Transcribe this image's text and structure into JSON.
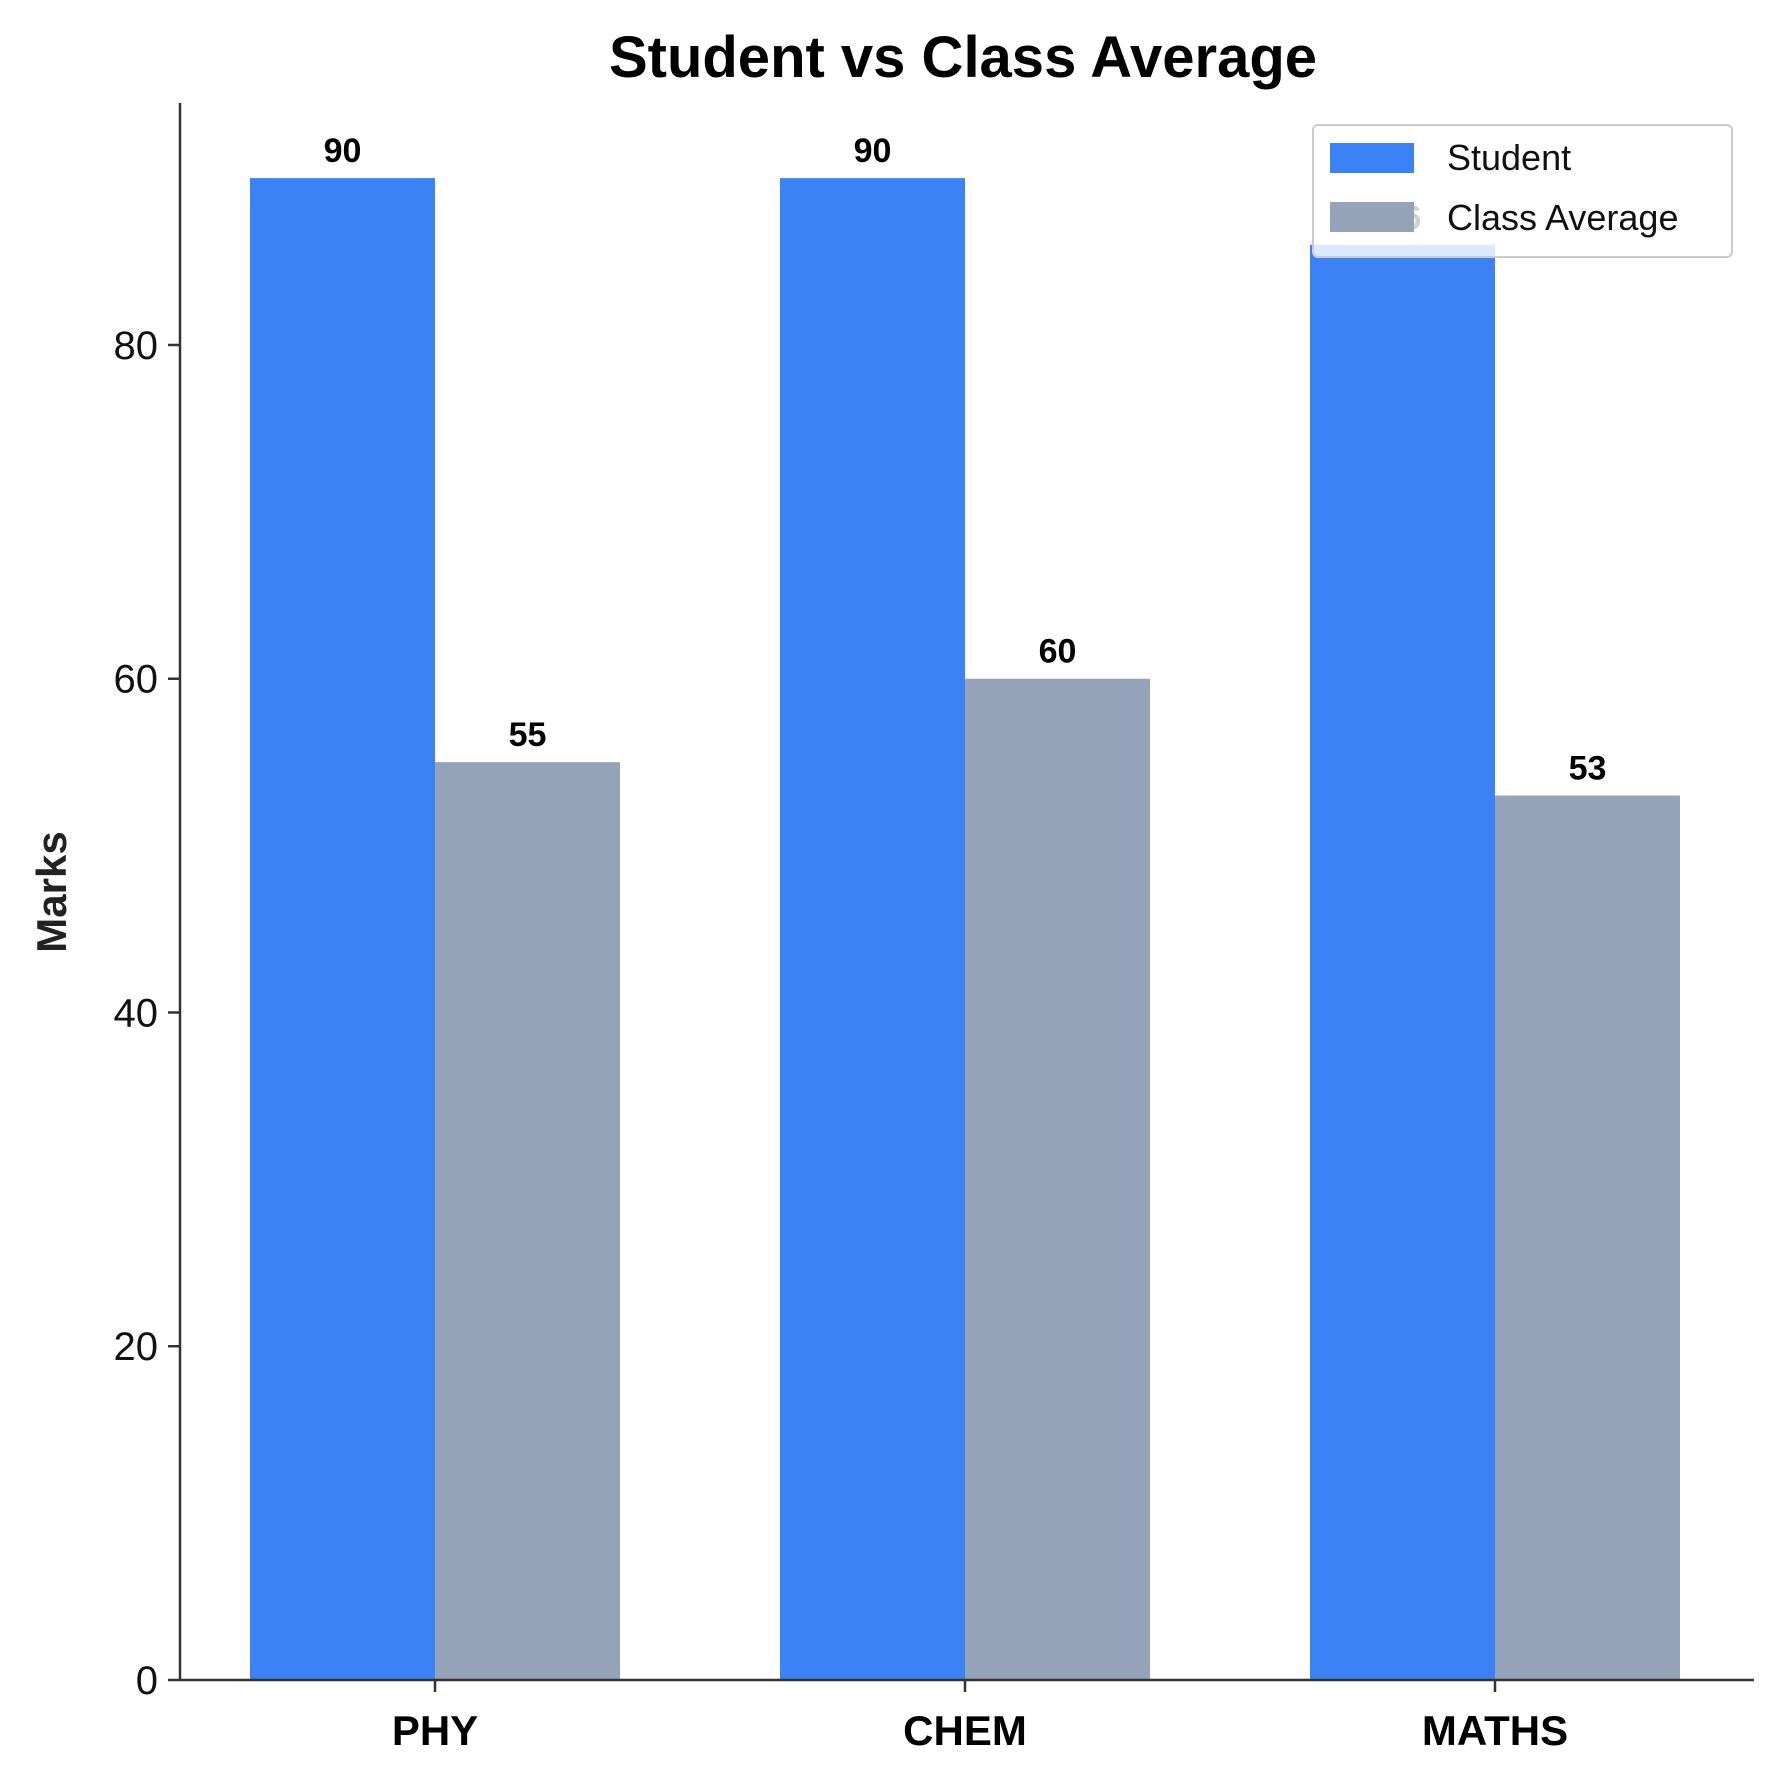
{
  "chart_data": {
    "type": "bar",
    "title": "Student vs Class Average",
    "xlabel": "",
    "ylabel": "Marks",
    "categories": [
      "PHY",
      "CHEM",
      "MATHS"
    ],
    "series": [
      {
        "name": "Student",
        "values": [
          90,
          90,
          86
        ],
        "color": "#3b82f6"
      },
      {
        "name": "Class Average",
        "values": [
          55,
          60,
          53
        ],
        "color": "#94a3b8"
      }
    ],
    "ylim": [
      0,
      94.5
    ],
    "yticks": [
      0,
      20,
      40,
      60,
      80
    ],
    "grid": false,
    "legend": "top-right"
  }
}
